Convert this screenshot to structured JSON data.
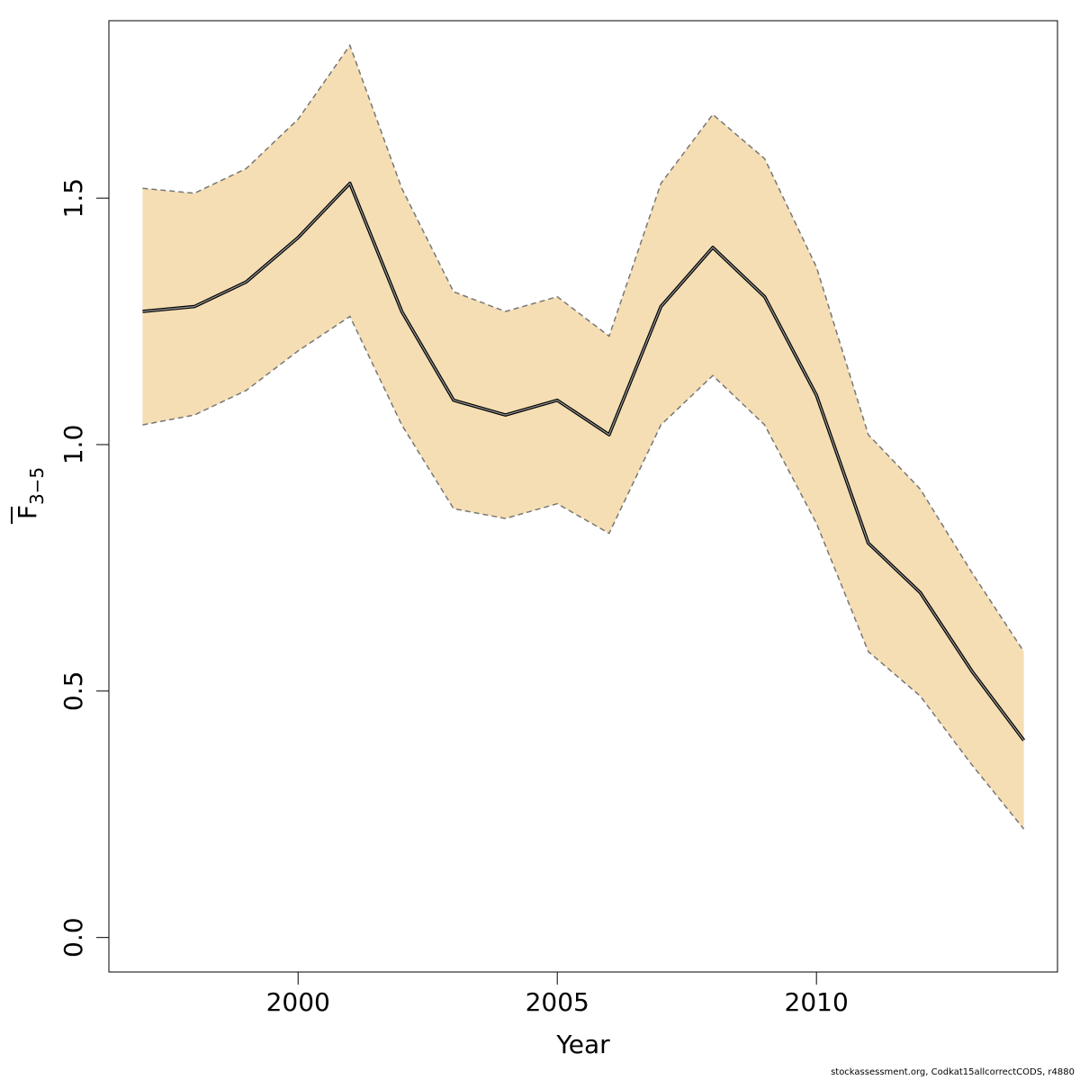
{
  "chart_data": {
    "type": "line",
    "xlabel": "Year",
    "ylabel": {
      "main": "F",
      "subscript": "3−5"
    },
    "xlim": [
      1996.35,
      2014.65
    ],
    "ylim": [
      -0.07,
      1.86
    ],
    "xticks": [
      2000,
      2005,
      2010
    ],
    "yticks": [
      0.0,
      0.5,
      1.0,
      1.5
    ],
    "ytick_labels": [
      "0.0",
      "0.5",
      "1.0",
      "1.5"
    ],
    "colors": {
      "band_fill": "#F5DEB3",
      "estimate_line": "#000000",
      "band_border": "#777777"
    },
    "series": [
      {
        "x": [
          1997,
          1998,
          1999,
          2000,
          2001,
          2002,
          2003,
          2004,
          2005,
          2006,
          2007,
          2008,
          2009,
          2010,
          2011,
          2012,
          2013,
          2014
        ],
        "estimate": [
          1.27,
          1.28,
          1.33,
          1.42,
          1.53,
          1.27,
          1.09,
          1.06,
          1.09,
          1.02,
          1.28,
          1.4,
          1.3,
          1.1,
          0.8,
          0.7,
          0.54,
          0.4
        ],
        "lower": [
          1.04,
          1.06,
          1.11,
          1.19,
          1.26,
          1.04,
          0.87,
          0.85,
          0.88,
          0.82,
          1.04,
          1.14,
          1.04,
          0.84,
          0.58,
          0.49,
          0.35,
          0.22
        ],
        "upper": [
          1.52,
          1.51,
          1.56,
          1.66,
          1.81,
          1.52,
          1.31,
          1.27,
          1.3,
          1.22,
          1.53,
          1.67,
          1.58,
          1.36,
          1.02,
          0.91,
          0.74,
          0.58
        ]
      }
    ]
  },
  "footer": {
    "credit": "stockassessment.org, Codkat15allcorrectCODS, r4880"
  }
}
